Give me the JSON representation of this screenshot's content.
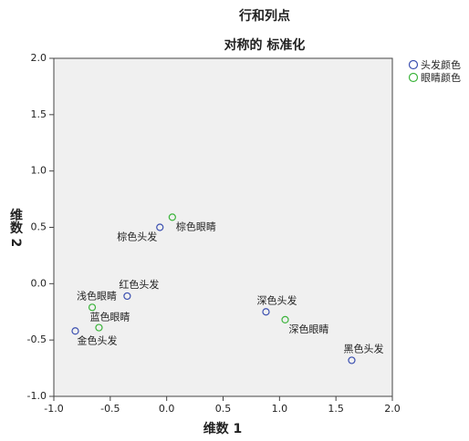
{
  "chart_data": {
    "type": "scatter",
    "title": "行和列点",
    "subtitle": "对称的 标准化",
    "x_label": "维数 1",
    "y_label": "维数 2",
    "xlim": [
      -1.0,
      2.0
    ],
    "ylim": [
      -1.0,
      2.0
    ],
    "xticks": [
      {
        "value": -1.0,
        "label": "-1.0"
      },
      -0.5,
      {
        "value": 0.0,
        "label": "0.0"
      },
      0.5,
      {
        "value": 1.0,
        "label": "1.0"
      },
      1.5,
      {
        "value": 2.0,
        "label": "2.0"
      }
    ],
    "yticks": [
      {
        "value": -1.0,
        "label": "-1.0"
      },
      -0.5,
      {
        "value": 0.0,
        "label": "0.0"
      },
      0.5,
      {
        "value": 1.0,
        "label": "1.0"
      },
      1.5,
      {
        "value": 2.0,
        "label": "2.0"
      }
    ],
    "legend": "top-right",
    "series": [
      {
        "name": "头发颜色",
        "color": "#3c50b0",
        "labels": [
          "棕色头发",
          "红色头发",
          "金色头发",
          "深色头发",
          "黑色头发"
        ],
        "x": [
          -0.06,
          -0.35,
          -0.81,
          0.88,
          1.64
        ],
        "values": [
          0.5,
          -0.11,
          -0.42,
          -0.25,
          -0.68
        ]
      },
      {
        "name": "眼睛颜色",
        "color": "#3cb43c",
        "labels": [
          "棕色眼睛",
          "浅色眼睛",
          "蓝色眼睛",
          "深色眼睛"
        ],
        "x": [
          0.05,
          -0.66,
          -0.6,
          1.05
        ],
        "values": [
          0.59,
          -0.21,
          -0.39,
          -0.32
        ]
      }
    ]
  }
}
